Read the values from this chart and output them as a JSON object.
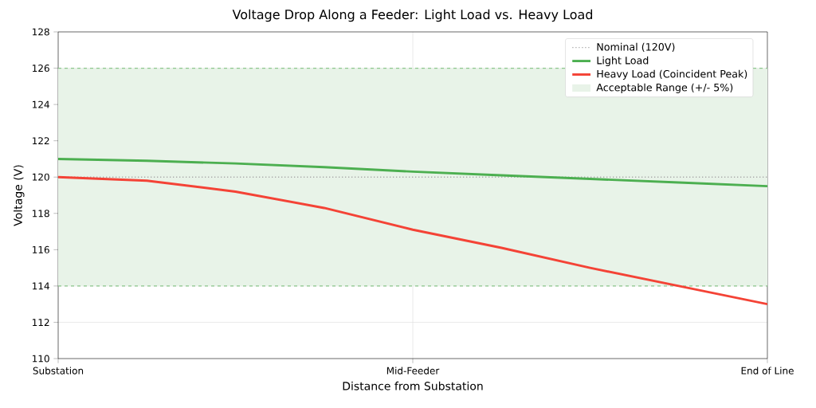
{
  "chart_data": {
    "type": "line",
    "title": "Voltage Drop Along a Feeder: Light Load vs. Heavy Load",
    "xlabel": "Distance from Substation",
    "ylabel": "Voltage (V)",
    "categories": [
      "Substation",
      null,
      null,
      null,
      "Mid-Feeder",
      null,
      null,
      null,
      "End of Line"
    ],
    "ylim": [
      110,
      128
    ],
    "yticks": [
      110,
      112,
      114,
      116,
      118,
      120,
      122,
      124,
      126,
      128
    ],
    "series": [
      {
        "name": "Light Load",
        "color": "#4caf50",
        "values": [
          121,
          120.9,
          120.75,
          120.55,
          120.3,
          120.1,
          119.9,
          119.7,
          119.5
        ]
      },
      {
        "name": "Heavy Load (Coincident Peak)",
        "color": "#f44336",
        "values": [
          120,
          119.8,
          119.2,
          118.3,
          117.1,
          116.1,
          115.0,
          114.0,
          113
        ]
      }
    ],
    "ref_lines": [
      {
        "axis": "y",
        "value": 120,
        "label": "Nominal (120V)",
        "color": "#aaaaaa",
        "line_style": "dotted"
      }
    ],
    "bands": [
      {
        "axis": "y",
        "from": 114,
        "to": 126,
        "label": "Acceptable Range (+/- 5%)",
        "color": "#e8f3e8"
      }
    ],
    "grid": true,
    "legend": "top right",
    "line_style": "solid",
    "marker": "none"
  }
}
